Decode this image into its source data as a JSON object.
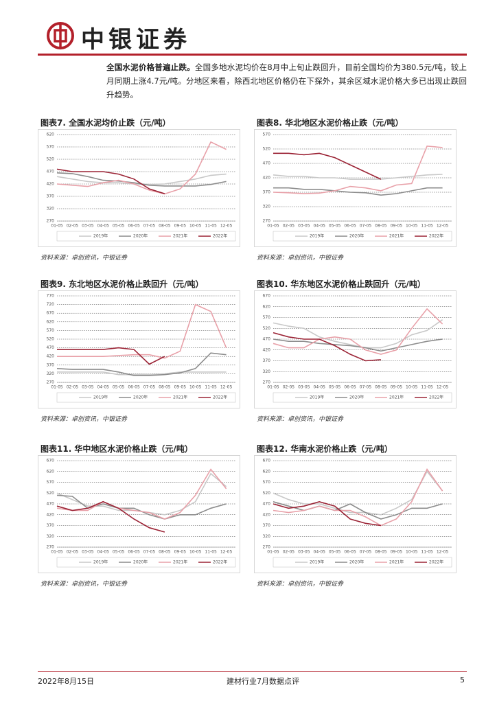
{
  "header": {
    "brand": "中银证券"
  },
  "paragraph": {
    "lead": "全国水泥价格普遍止跌。",
    "text": "全国多地水泥均价在8月中上旬止跌回升，目前全国均价为380.5元/吨，较上月同期上涨4.7元/吨。分地区来看，除西北地区价格仍在下探外，其余区域水泥价格大多已出现止跌回升趋势。"
  },
  "chart_data": [
    {
      "type": "line",
      "title": "图表7. 全国水泥均价止跌（元/吨）",
      "source": "资料来源：卓创资讯，中银证券",
      "categories": [
        "01-05",
        "02-05",
        "03-05",
        "04-05",
        "05-05",
        "06-05",
        "07-05",
        "08-05",
        "09-05",
        "10-05",
        "11-05",
        "12-05"
      ],
      "ylim": [
        270,
        620
      ],
      "yticks": [
        270,
        320,
        370,
        420,
        470,
        520,
        570,
        620
      ],
      "grid": true,
      "series": [
        {
          "name": "2019年",
          "color": "#c8c8c8",
          "values": [
            450,
            440,
            430,
            425,
            425,
            420,
            418,
            420,
            430,
            440,
            455,
            460
          ]
        },
        {
          "name": "2020年",
          "color": "#8c8c8c",
          "values": [
            465,
            462,
            450,
            435,
            432,
            425,
            415,
            412,
            412,
            412,
            418,
            430
          ]
        },
        {
          "name": "2021年",
          "color": "#e8a0a8",
          "values": [
            420,
            415,
            410,
            425,
            435,
            420,
            395,
            380,
            400,
            460,
            590,
            560
          ]
        },
        {
          "name": "2022年",
          "color": "#9b2335",
          "values": [
            480,
            470,
            470,
            470,
            460,
            440,
            400,
            380.5,
            null,
            null,
            null,
            null
          ]
        }
      ]
    },
    {
      "type": "line",
      "title": "图表8. 华北地区水泥价格止跌（元/吨）",
      "source": "资料来源：卓创资讯，中银证券",
      "categories": [
        "01-05",
        "02-05",
        "03-05",
        "04-05",
        "05-05",
        "06-05",
        "07-05",
        "08-05",
        "09-05",
        "10-05",
        "11-05",
        "12-05"
      ],
      "ylim": [
        270,
        570
      ],
      "yticks": [
        270,
        320,
        370,
        420,
        470,
        520,
        570
      ],
      "grid": true,
      "series": [
        {
          "name": "2019年",
          "color": "#c8c8c8",
          "values": [
            430,
            425,
            425,
            420,
            420,
            415,
            415,
            415,
            420,
            425,
            430,
            432
          ]
        },
        {
          "name": "2020年",
          "color": "#8c8c8c",
          "values": [
            385,
            385,
            380,
            380,
            375,
            370,
            368,
            360,
            365,
            375,
            385,
            385
          ]
        },
        {
          "name": "2021年",
          "color": "#e8a0a8",
          "values": [
            370,
            368,
            365,
            367,
            375,
            390,
            385,
            375,
            395,
            400,
            530,
            525
          ]
        },
        {
          "name": "2022年",
          "color": "#9b2335",
          "values": [
            505,
            505,
            500,
            505,
            490,
            465,
            440,
            415,
            null,
            null,
            null,
            null
          ]
        }
      ]
    },
    {
      "type": "line",
      "title": "图表9. 东北地区水泥价格止跌回升（元/吨）",
      "source": "资料来源：卓创资讯，中银证券",
      "categories": [
        "01-05",
        "02-05",
        "03-05",
        "04-05",
        "05-05",
        "06-05",
        "07-05",
        "08-05",
        "09-05",
        "10-05",
        "11-05",
        "12-05"
      ],
      "ylim": [
        270,
        770
      ],
      "yticks": [
        270,
        320,
        370,
        420,
        470,
        520,
        570,
        620,
        670,
        720,
        770
      ],
      "grid": true,
      "series": [
        {
          "name": "2019年",
          "color": "#c8c8c8",
          "values": [
            330,
            330,
            330,
            330,
            315,
            315,
            315,
            320,
            330,
            330,
            330,
            330
          ]
        },
        {
          "name": "2020年",
          "color": "#8c8c8c",
          "values": [
            350,
            345,
            345,
            345,
            330,
            310,
            310,
            315,
            325,
            350,
            440,
            430
          ]
        },
        {
          "name": "2021年",
          "color": "#e8a0a8",
          "values": [
            420,
            420,
            420,
            420,
            425,
            430,
            430,
            410,
            450,
            720,
            680,
            470
          ]
        },
        {
          "name": "2022年",
          "color": "#9b2335",
          "values": [
            460,
            460,
            460,
            460,
            470,
            460,
            375,
            420,
            null,
            null,
            null,
            null
          ]
        }
      ]
    },
    {
      "type": "line",
      "title": "图表10. 华东地区水泥价格止跌回升（元/吨）",
      "source": "资料来源：卓创资讯，中银证券",
      "categories": [
        "01-05",
        "02-05",
        "03-05",
        "04-05",
        "05-05",
        "06-05",
        "07-05",
        "08-05",
        "09-05",
        "10-05",
        "11-05",
        "12-05"
      ],
      "ylim": [
        270,
        670
      ],
      "yticks": [
        270,
        320,
        370,
        420,
        470,
        520,
        570,
        620,
        670
      ],
      "grid": true,
      "series": [
        {
          "name": "2019年",
          "color": "#c8c8c8",
          "values": [
            545,
            530,
            520,
            480,
            460,
            445,
            430,
            430,
            450,
            490,
            510,
            560
          ]
        },
        {
          "name": "2020年",
          "color": "#8c8c8c",
          "values": [
            470,
            460,
            460,
            450,
            445,
            440,
            430,
            415,
            430,
            445,
            460,
            470
          ]
        },
        {
          "name": "2021年",
          "color": "#e8a0a8",
          "values": [
            450,
            430,
            430,
            470,
            480,
            470,
            420,
            400,
            420,
            520,
            610,
            540
          ]
        },
        {
          "name": "2022年",
          "color": "#9b2335",
          "values": [
            500,
            480,
            470,
            470,
            440,
            400,
            370,
            375,
            null,
            null,
            null,
            null
          ]
        }
      ]
    },
    {
      "type": "line",
      "title": "图表11. 华中地区水泥价格止跌（元/吨）",
      "source": "资料来源：卓创资讯，中银证券",
      "categories": [
        "01-05",
        "02-05",
        "03-05",
        "04-05",
        "05-05",
        "06-05",
        "07-05",
        "08-05",
        "09-05",
        "10-05",
        "11-05",
        "12-05"
      ],
      "ylim": [
        270,
        670
      ],
      "yticks": [
        270,
        320,
        370,
        420,
        470,
        520,
        570,
        620,
        670
      ],
      "grid": true,
      "series": [
        {
          "name": "2019年",
          "color": "#c8c8c8",
          "values": [
            520,
            490,
            460,
            460,
            440,
            440,
            430,
            420,
            440,
            480,
            610,
            550
          ]
        },
        {
          "name": "2020年",
          "color": "#8c8c8c",
          "values": [
            510,
            505,
            450,
            470,
            450,
            450,
            420,
            400,
            420,
            420,
            450,
            470
          ]
        },
        {
          "name": "2021年",
          "color": "#e8a0a8",
          "values": [
            450,
            440,
            440,
            480,
            450,
            440,
            430,
            400,
            430,
            510,
            630,
            540
          ]
        },
        {
          "name": "2022年",
          "color": "#9b2335",
          "values": [
            460,
            440,
            450,
            480,
            450,
            400,
            360,
            340,
            null,
            null,
            null,
            null
          ]
        }
      ]
    },
    {
      "type": "line",
      "title": "图表12. 华南水泥价格止跌（元/吨）",
      "source": "资料来源：卓创资讯，中银证券",
      "categories": [
        "01-05",
        "02-05",
        "03-05",
        "04-05",
        "05-05",
        "06-05",
        "07-05",
        "08-05",
        "09-05",
        "10-05",
        "11-05",
        "12-05"
      ],
      "ylim": [
        270,
        670
      ],
      "yticks": [
        270,
        320,
        370,
        420,
        470,
        520,
        570,
        620,
        670
      ],
      "grid": true,
      "series": [
        {
          "name": "2019年",
          "color": "#c8c8c8",
          "values": [
            520,
            490,
            470,
            470,
            450,
            430,
            430,
            420,
            450,
            490,
            620,
            530
          ]
        },
        {
          "name": "2020年",
          "color": "#8c8c8c",
          "values": [
            480,
            460,
            440,
            460,
            440,
            470,
            430,
            400,
            420,
            450,
            450,
            470
          ]
        },
        {
          "name": "2021年",
          "color": "#e8a0a8",
          "values": [
            440,
            430,
            440,
            460,
            440,
            440,
            410,
            370,
            400,
            480,
            630,
            530
          ]
        },
        {
          "name": "2022年",
          "color": "#9b2335",
          "values": [
            470,
            450,
            460,
            480,
            460,
            400,
            380,
            370,
            null,
            null,
            null,
            null
          ]
        }
      ]
    }
  ],
  "footer": {
    "date": "2022年8月15日",
    "report": "建材行业7月数据点评",
    "page": "5"
  }
}
